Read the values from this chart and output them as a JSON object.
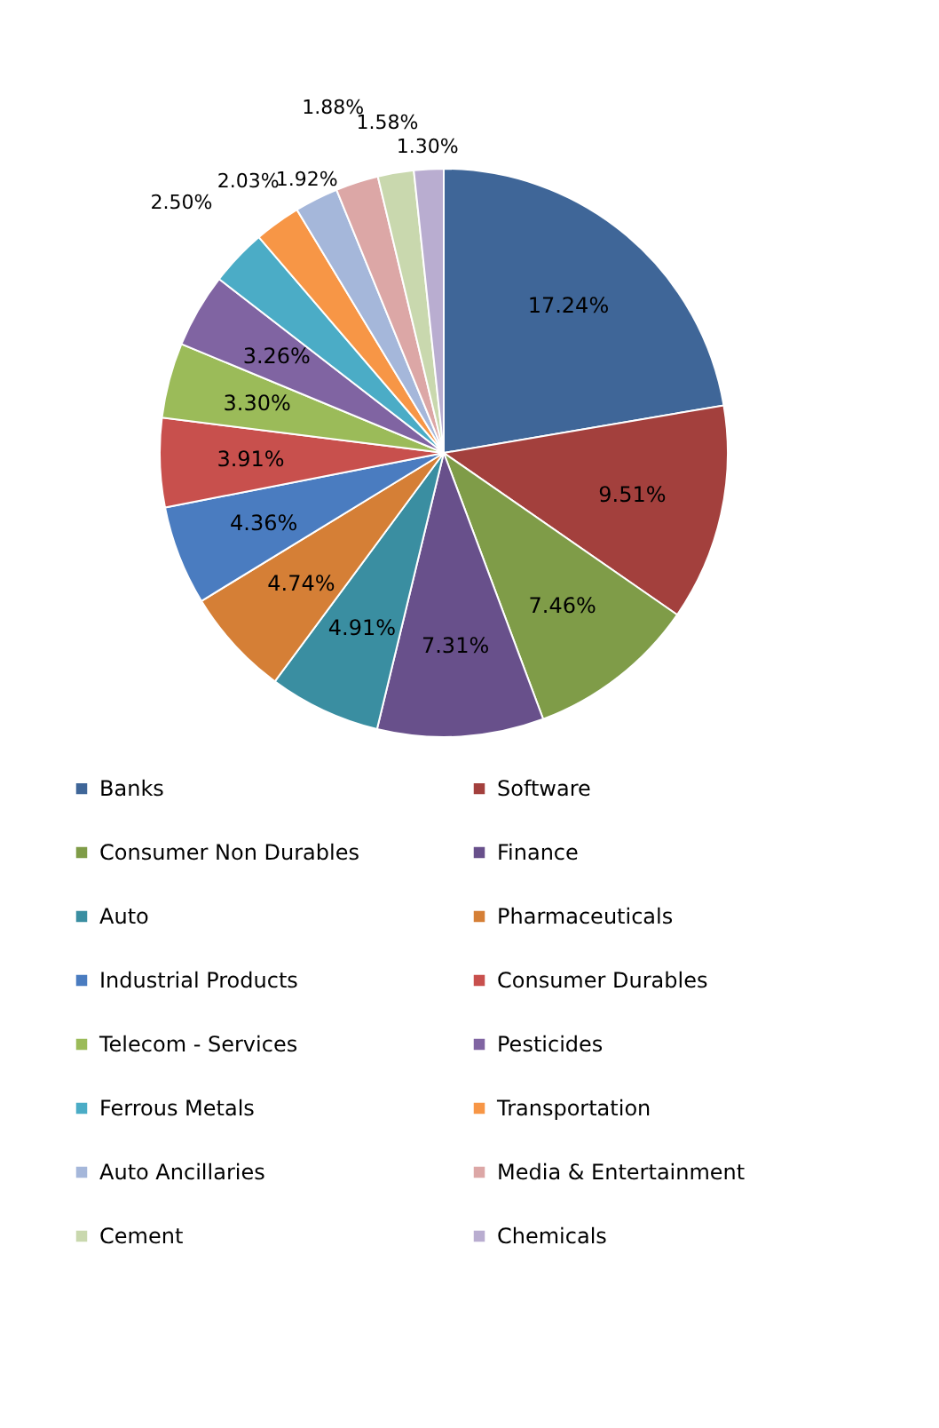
{
  "chart_data": {
    "type": "pie",
    "categories": [
      "Banks",
      "Software",
      "Consumer Non Durables",
      "Finance",
      "Auto",
      "Pharmaceuticals",
      "Industrial Products",
      "Consumer Durables",
      "Telecom - Services",
      "Pesticides",
      "Ferrous Metals",
      "Transportation",
      "Auto Ancillaries",
      "Media & Entertainment",
      "Cement",
      "Chemicals"
    ],
    "values": [
      17.24,
      9.51,
      7.46,
      7.31,
      4.91,
      4.74,
      4.36,
      3.91,
      3.3,
      3.26,
      2.5,
      2.03,
      1.92,
      1.88,
      1.58,
      1.3
    ],
    "value_labels": [
      "17.24%",
      "9.51%",
      "7.46%",
      "7.31%",
      "4.91%",
      "4.74%",
      "4.36%",
      "3.91%",
      "3.30%",
      "3.26%",
      "2.50%",
      "2.03%",
      "1.92%",
      "1.88%",
      "1.58%",
      "1.30%"
    ],
    "colors": [
      "#3f6698",
      "#a3403d",
      "#7f9c48",
      "#68508b",
      "#3a8ea1",
      "#d57f36",
      "#4a7cc0",
      "#c8504d",
      "#9bbb59",
      "#8064a2",
      "#4bacc6",
      "#f79646",
      "#a5b7da",
      "#dca7a6",
      "#c9d8ae",
      "#b9add0"
    ],
    "legend": "bottom"
  }
}
